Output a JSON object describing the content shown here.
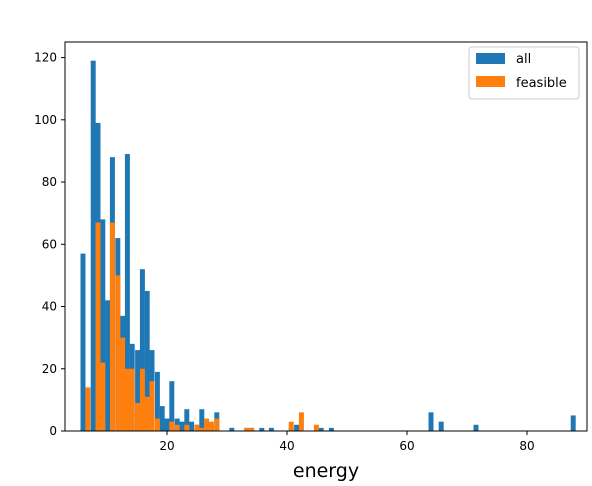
{
  "chart_data": {
    "type": "bar",
    "title": "",
    "xlabel": "energy",
    "ylabel": "",
    "xlim": [
      3,
      90
    ],
    "ylim": [
      0,
      125
    ],
    "xticks": [
      20,
      40,
      60,
      80
    ],
    "yticks": [
      0,
      20,
      40,
      60,
      80,
      100,
      120
    ],
    "grid": false,
    "legend_position": "top-right",
    "bin_width": 0.828,
    "series": [
      {
        "name": "all",
        "color": "#1f77b4",
        "points": [
          [
            6.0,
            57
          ],
          [
            6.8,
            14
          ],
          [
            7.7,
            119
          ],
          [
            8.5,
            99
          ],
          [
            9.3,
            68
          ],
          [
            10.1,
            42
          ],
          [
            10.9,
            88
          ],
          [
            11.8,
            62
          ],
          [
            12.6,
            37
          ],
          [
            13.4,
            89
          ],
          [
            14.2,
            28
          ],
          [
            15.1,
            26
          ],
          [
            15.9,
            52
          ],
          [
            16.7,
            45
          ],
          [
            17.5,
            26
          ],
          [
            18.4,
            19
          ],
          [
            19.2,
            8
          ],
          [
            20.0,
            4
          ],
          [
            20.8,
            16
          ],
          [
            21.7,
            4
          ],
          [
            22.5,
            3
          ],
          [
            23.3,
            7
          ],
          [
            24.1,
            3
          ],
          [
            25.0,
            2
          ],
          [
            25.8,
            7
          ],
          [
            26.6,
            3
          ],
          [
            27.4,
            2
          ],
          [
            28.3,
            6
          ],
          [
            30.8,
            1
          ],
          [
            33.3,
            1
          ],
          [
            34.1,
            1
          ],
          [
            35.8,
            1
          ],
          [
            37.4,
            1
          ],
          [
            40.7,
            1
          ],
          [
            41.6,
            2
          ],
          [
            45.7,
            1
          ],
          [
            47.4,
            1
          ],
          [
            64.0,
            6
          ],
          [
            65.7,
            3
          ],
          [
            71.5,
            2
          ],
          [
            87.7,
            5
          ]
        ]
      },
      {
        "name": "feasible",
        "color": "#ff7f0e",
        "points": [
          [
            6.8,
            14
          ],
          [
            8.5,
            67
          ],
          [
            9.3,
            22
          ],
          [
            10.9,
            67
          ],
          [
            11.8,
            50
          ],
          [
            12.6,
            30
          ],
          [
            13.4,
            20
          ],
          [
            14.2,
            20
          ],
          [
            15.1,
            9
          ],
          [
            15.9,
            20
          ],
          [
            16.7,
            11
          ],
          [
            17.5,
            16
          ],
          [
            18.4,
            4
          ],
          [
            20.8,
            3
          ],
          [
            21.7,
            2
          ],
          [
            23.3,
            2
          ],
          [
            25.0,
            2
          ],
          [
            25.8,
            1
          ],
          [
            26.6,
            4
          ],
          [
            27.4,
            3
          ],
          [
            28.3,
            4
          ],
          [
            33.3,
            1
          ],
          [
            34.1,
            1
          ],
          [
            40.7,
            3
          ],
          [
            42.4,
            6
          ],
          [
            44.9,
            2
          ]
        ]
      }
    ]
  }
}
